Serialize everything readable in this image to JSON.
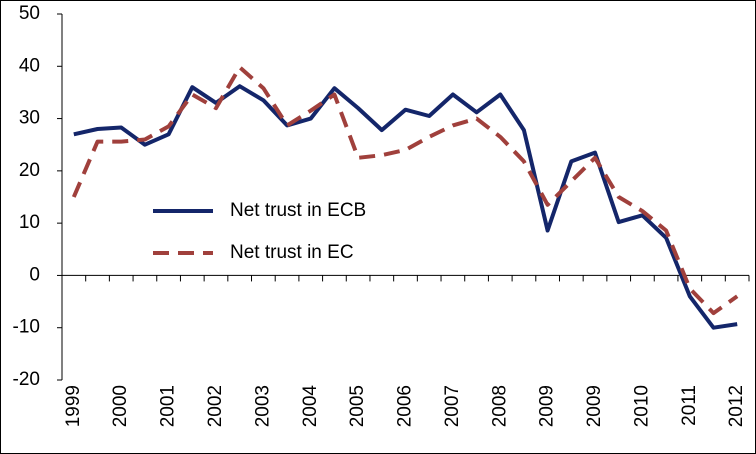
{
  "chart_data": {
    "type": "line",
    "categories": [
      "1999",
      null,
      "2000",
      null,
      "2001",
      null,
      "2002",
      null,
      "2003",
      null,
      "2004",
      null,
      "2005",
      null,
      "2006",
      null,
      "2007",
      null,
      "2008",
      null,
      "2009",
      null,
      "2009",
      null,
      "2010",
      null,
      "2011",
      null,
      "2012"
    ],
    "series": [
      {
        "name": "Net trust in ECB",
        "color": "#14266a",
        "dash": false,
        "values": [
          27,
          28,
          28.3,
          25,
          27,
          36,
          33,
          36.2,
          33.5,
          28.7,
          30,
          35.8,
          32,
          27.8,
          31.7,
          30.5,
          34.6,
          31.2,
          34.6,
          27.8,
          8.6,
          21.8,
          23.5,
          10.2,
          11.5,
          7.2,
          -4,
          -10,
          -9.3
        ]
      },
      {
        "name": "Net trust in EC",
        "color": "#a0403c",
        "dash": true,
        "values": [
          15,
          25.6,
          25.6,
          26,
          28.5,
          34.6,
          32,
          39.8,
          35.8,
          28.7,
          31.5,
          34.6,
          22.5,
          23,
          24,
          26.5,
          28.7,
          30,
          26.5,
          21.8,
          13.5,
          18,
          22.5,
          15,
          12.3,
          8.6,
          -2.5,
          -7.2,
          -4
        ]
      }
    ],
    "ylim": [
      -20,
      50
    ],
    "yticks": [
      -20,
      -10,
      0,
      10,
      20,
      30,
      40,
      50
    ]
  }
}
